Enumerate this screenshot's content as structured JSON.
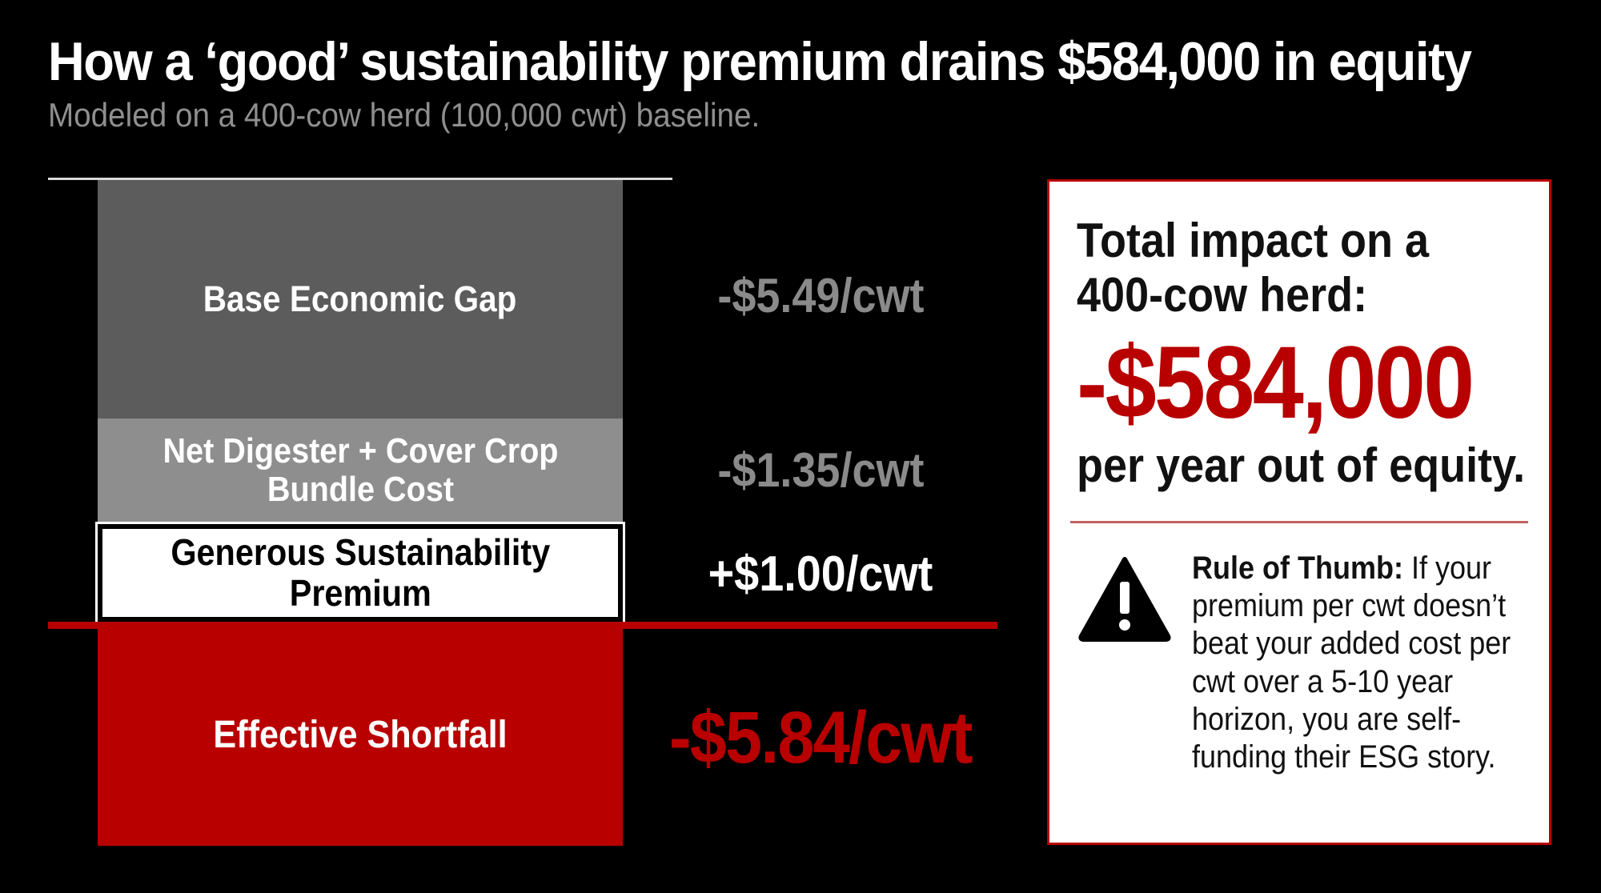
{
  "title": "How a ‘good’ sustainability premium drains $584,000 in equity",
  "subtitle": "Modeled on a 400-cow herd (100,000 cwt) baseline.",
  "chart_data": {
    "type": "bar",
    "title": "How a ‘good’ sustainability premium drains $584,000 in equity",
    "subtitle": "Modeled on a 400-cow herd (100,000 cwt) baseline.",
    "unit": "$/cwt",
    "categories": [
      "Base Economic Gap",
      "Net Digester + Cover Crop Bundle Cost",
      "Generous Sustainability Premium",
      "Effective Shortfall"
    ],
    "values": [
      -5.49,
      -1.35,
      1.0,
      -5.84
    ],
    "value_labels": [
      "-$5.49/cwt",
      "-$1.35/cwt",
      "+$1.00/cwt",
      "-$5.84/cwt"
    ],
    "segments": [
      {
        "label_lines": [
          "Base Economic Gap"
        ],
        "value": -5.49,
        "value_label": "-$5.49/cwt",
        "color": "#5c5c5c",
        "label_color": "#8a8a8a"
      },
      {
        "label_lines": [
          "Net Digester + Cover Crop",
          "Bundle Cost"
        ],
        "value": -1.35,
        "value_label": "-$1.35/cwt",
        "color": "#8e8e8e",
        "label_color": "#8a8a8a"
      },
      {
        "label_lines": [
          "Generous Sustainability",
          "Premium"
        ],
        "value": 1.0,
        "value_label": "+$1.00/cwt",
        "color": "#ffffff",
        "label_color": "#ffffff"
      },
      {
        "label_lines": [
          "Effective Shortfall"
        ],
        "value": -5.84,
        "value_label": "-$5.84/cwt",
        "color": "#b80000",
        "label_color": "#b80000"
      }
    ],
    "xlabel": "",
    "ylabel": "",
    "grid": false,
    "legend": "none"
  },
  "callout": {
    "heading": "Total impact on a 400-cow herd:",
    "amount": "-$584,000",
    "amount_value": -584000,
    "after": "per year out of equity.",
    "rule_label": "Rule of Thumb:",
    "rule_text": "If your premium per cwt doesn’t beat your added cost per cwt over a 5-10 year horizon, you are self-funding their ESG story.",
    "icon": "warning-triangle-icon"
  },
  "colors": {
    "background": "#000000",
    "accent_red": "#b80000",
    "base_gray": "#5c5c5c",
    "bundle_gray": "#8e8e8e",
    "muted_text": "#8a8a8a"
  }
}
